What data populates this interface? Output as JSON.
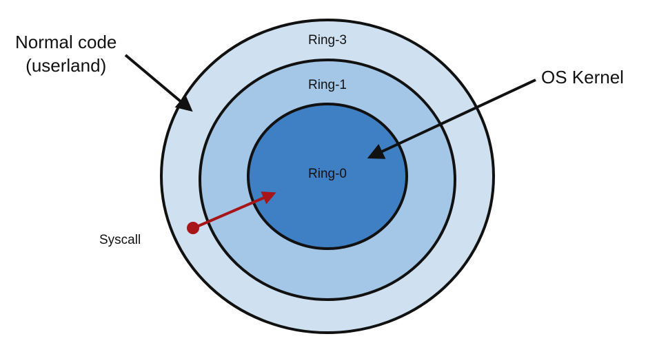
{
  "rings": [
    {
      "label": "Ring-3",
      "color": "#cfe0f1"
    },
    {
      "label": "Ring-1",
      "color": "#a4c6e7"
    },
    {
      "label": "Ring-0",
      "color": "#3f80c5"
    }
  ],
  "callouts": {
    "normal_code_line1": "Normal code",
    "normal_code_line2": "(userland)",
    "os_kernel": "OS Kernel",
    "syscall": "Syscall"
  },
  "colors": {
    "outline": "#111111",
    "syscall_arrow": "#a81518",
    "pointer_arrow": "#111111"
  }
}
